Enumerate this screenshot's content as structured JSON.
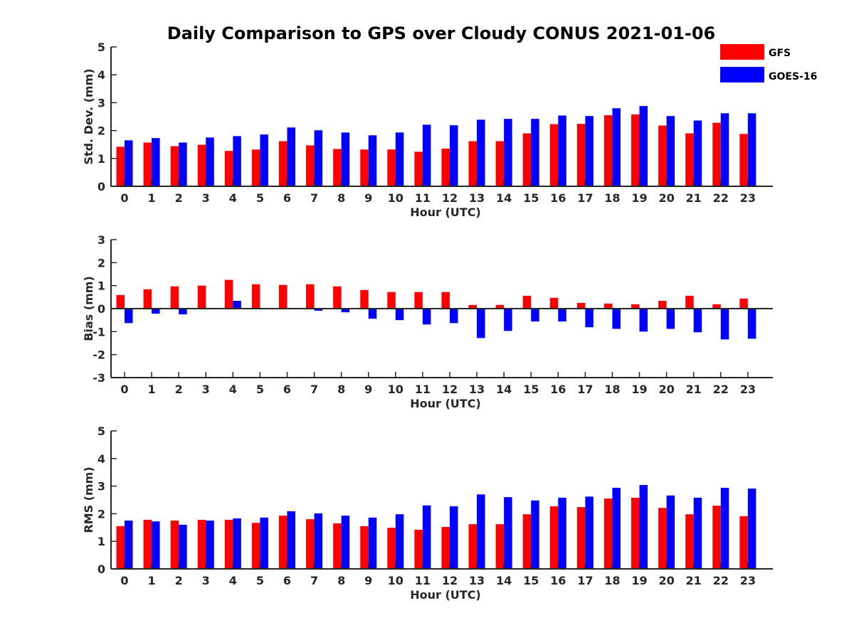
{
  "title": "Daily Comparison to GPS over Cloudy CONUS 2021-01-06",
  "colors": {
    "GFS": "#ff0000",
    "GOES-16": "#0000ff",
    "axis": "#262626"
  },
  "legend": {
    "position": "top-right",
    "entries": [
      "GFS",
      "GOES-16"
    ]
  },
  "chart_data": [
    {
      "type": "bar",
      "ylabel": "Std. Dev. (mm)",
      "xlabel": "Hour (UTC)",
      "ylim": [
        0,
        5
      ],
      "yticks": [
        0,
        1,
        2,
        3,
        4,
        5
      ],
      "categories": [
        "0",
        "1",
        "2",
        "3",
        "4",
        "5",
        "6",
        "7",
        "8",
        "9",
        "10",
        "11",
        "12",
        "13",
        "14",
        "15",
        "16",
        "17",
        "18",
        "19",
        "20",
        "21",
        "22",
        "23"
      ],
      "series": [
        {
          "name": "GFS",
          "values": [
            1.42,
            1.57,
            1.44,
            1.49,
            1.27,
            1.32,
            1.62,
            1.47,
            1.34,
            1.32,
            1.32,
            1.24,
            1.35,
            1.62,
            1.62,
            1.9,
            2.23,
            2.24,
            2.55,
            2.58,
            2.18,
            1.9,
            2.28,
            1.88
          ]
        },
        {
          "name": "GOES-16",
          "values": [
            1.65,
            1.73,
            1.57,
            1.75,
            1.8,
            1.86,
            2.11,
            2.01,
            1.93,
            1.83,
            1.93,
            2.21,
            2.19,
            2.39,
            2.42,
            2.42,
            2.54,
            2.52,
            2.8,
            2.88,
            2.52,
            2.36,
            2.62,
            2.62
          ]
        }
      ]
    },
    {
      "type": "bar",
      "ylabel": "Bias (mm)",
      "xlabel": "Hour (UTC)",
      "ylim": [
        -3,
        3
      ],
      "yticks": [
        -3,
        -2,
        -1,
        0,
        1,
        2,
        3
      ],
      "categories": [
        "0",
        "1",
        "2",
        "3",
        "4",
        "5",
        "6",
        "7",
        "8",
        "9",
        "10",
        "11",
        "12",
        "13",
        "14",
        "15",
        "16",
        "17",
        "18",
        "19",
        "20",
        "21",
        "22",
        "23"
      ],
      "series": [
        {
          "name": "GFS",
          "values": [
            0.59,
            0.84,
            0.97,
            1.0,
            1.25,
            1.06,
            1.03,
            1.06,
            0.97,
            0.81,
            0.72,
            0.72,
            0.72,
            0.16,
            0.16,
            0.56,
            0.47,
            0.25,
            0.22,
            0.19,
            0.34,
            0.56,
            0.19,
            0.44
          ]
        },
        {
          "name": "GOES-16",
          "values": [
            -0.63,
            -0.22,
            -0.25,
            -0.03,
            0.34,
            0.03,
            0.0,
            -0.09,
            -0.16,
            -0.44,
            -0.5,
            -0.69,
            -0.63,
            -1.28,
            -0.97,
            -0.56,
            -0.56,
            -0.81,
            -0.88,
            -1.0,
            -0.88,
            -1.03,
            -1.34,
            -1.31
          ]
        }
      ]
    },
    {
      "type": "bar",
      "ylabel": "RMS (mm)",
      "xlabel": "Hour (UTC)",
      "ylim": [
        0,
        5
      ],
      "yticks": [
        0,
        1,
        2,
        3,
        4,
        5
      ],
      "categories": [
        "0",
        "1",
        "2",
        "3",
        "4",
        "5",
        "6",
        "7",
        "8",
        "9",
        "10",
        "11",
        "12",
        "13",
        "14",
        "15",
        "16",
        "17",
        "18",
        "19",
        "20",
        "21",
        "22",
        "23"
      ],
      "series": [
        {
          "name": "GFS",
          "values": [
            1.55,
            1.78,
            1.75,
            1.78,
            1.78,
            1.67,
            1.93,
            1.8,
            1.65,
            1.55,
            1.49,
            1.42,
            1.52,
            1.62,
            1.62,
            1.98,
            2.27,
            2.24,
            2.55,
            2.58,
            2.21,
            1.98,
            2.29,
            1.91
          ]
        },
        {
          "name": "GOES-16",
          "values": [
            1.75,
            1.72,
            1.6,
            1.75,
            1.83,
            1.86,
            2.09,
            2.01,
            1.93,
            1.86,
            1.98,
            2.3,
            2.27,
            2.7,
            2.6,
            2.48,
            2.58,
            2.62,
            2.94,
            3.04,
            2.66,
            2.58,
            2.94,
            2.91
          ]
        }
      ]
    }
  ]
}
